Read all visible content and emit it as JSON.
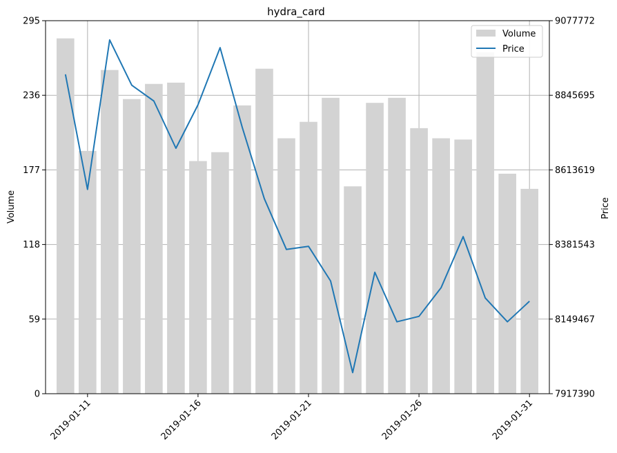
{
  "chart_data": {
    "type": "bar+line",
    "title": "hydra_card",
    "ylabel_left": "Volume",
    "ylabel_right": "Price",
    "xlabel": "",
    "categories": [
      "2019-01-10",
      "2019-01-11",
      "2019-01-12",
      "2019-01-13",
      "2019-01-14",
      "2019-01-15",
      "2019-01-16",
      "2019-01-17",
      "2019-01-18",
      "2019-01-19",
      "2019-01-20",
      "2019-01-21",
      "2019-01-22",
      "2019-01-23",
      "2019-01-24",
      "2019-01-25",
      "2019-01-26",
      "2019-01-27",
      "2019-01-28",
      "2019-01-29",
      "2019-01-30",
      "2019-01-31"
    ],
    "x_ticks": [
      "2019-01-11",
      "2019-01-16",
      "2019-01-21",
      "2019-01-26",
      "2019-01-31"
    ],
    "left_axis": {
      "ylim": [
        0,
        295
      ],
      "ticks": [
        "0",
        "59",
        "118",
        "177",
        "236",
        "295"
      ]
    },
    "right_axis": {
      "ylim": [
        7917390,
        9077772
      ],
      "ticks": [
        "7917390",
        "8149467",
        "8381543",
        "8613619",
        "8845695",
        "9077772"
      ]
    },
    "grid": true,
    "legend_position": "top-right",
    "series": [
      {
        "name": "Volume",
        "kind": "bar",
        "axis": "left",
        "color": "#d3d3d3",
        "values": [
          281,
          192,
          256,
          233,
          245,
          246,
          184,
          191,
          228,
          257,
          202,
          215,
          234,
          164,
          230,
          234,
          210,
          202,
          201,
          270,
          174,
          162
        ]
      },
      {
        "name": "Price",
        "kind": "line",
        "axis": "right",
        "color": "#1f77b4",
        "values": [
          8911000,
          8553000,
          9018000,
          8877000,
          8828000,
          8681000,
          8816000,
          8994000,
          8746000,
          8524000,
          8366000,
          8376000,
          8268000,
          7983000,
          8295000,
          8141000,
          8158000,
          8247000,
          8406000,
          8215000,
          8141000,
          8205000
        ]
      }
    ]
  }
}
